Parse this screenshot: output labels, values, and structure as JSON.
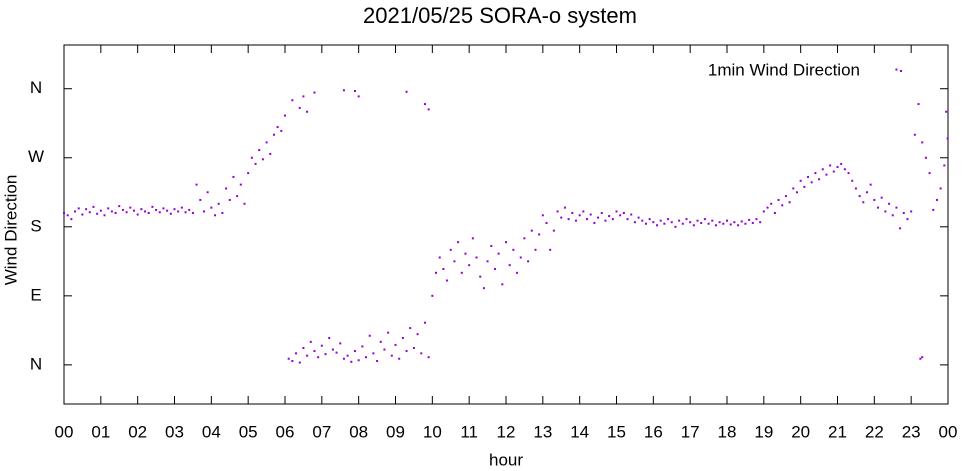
{
  "chart_data": {
    "type": "scatter",
    "title": "2021/05/25 SORA-o system",
    "x_label": "hour",
    "y_label": "Wind Direction",
    "xlim": [
      0,
      24
    ],
    "xticks": [
      {
        "value": 0,
        "label": "00"
      },
      {
        "value": 1,
        "label": "01"
      },
      {
        "value": 2,
        "label": "02"
      },
      {
        "value": 3,
        "label": "03"
      },
      {
        "value": 4,
        "label": "04"
      },
      {
        "value": 5,
        "label": "05"
      },
      {
        "value": 6,
        "label": "06"
      },
      {
        "value": 7,
        "label": "07"
      },
      {
        "value": 8,
        "label": "08"
      },
      {
        "value": 9,
        "label": "09"
      },
      {
        "value": 10,
        "label": "10"
      },
      {
        "value": 11,
        "label": "11"
      },
      {
        "value": 12,
        "label": "12"
      },
      {
        "value": 13,
        "label": "13"
      },
      {
        "value": 14,
        "label": "14"
      },
      {
        "value": 15,
        "label": "15"
      },
      {
        "value": 16,
        "label": "16"
      },
      {
        "value": 17,
        "label": "17"
      },
      {
        "value": 18,
        "label": "18"
      },
      {
        "value": 19,
        "label": "19"
      },
      {
        "value": 20,
        "label": "20"
      },
      {
        "value": 21,
        "label": "21"
      },
      {
        "value": 22,
        "label": "22"
      },
      {
        "value": 23,
        "label": "23"
      },
      {
        "value": 24,
        "label": "00"
      }
    ],
    "ylim": [
      -51,
      417
    ],
    "yticks": [
      {
        "value": 0,
        "label": "N"
      },
      {
        "value": 90,
        "label": "E"
      },
      {
        "value": 180,
        "label": "S"
      },
      {
        "value": 270,
        "label": "W"
      },
      {
        "value": 360,
        "label": "N"
      }
    ],
    "legend": "upper right",
    "series": [
      {
        "name": "1min Wind Direction",
        "color": "#9400d3",
        "x": [
          0,
          0.1,
          0.2,
          0.3,
          0.4,
          0.5,
          0.6,
          0.7,
          0.8,
          0.9,
          1,
          1.1,
          1.2,
          1.3,
          1.4,
          1.5,
          1.6,
          1.7,
          1.8,
          1.9,
          2,
          2.1,
          2.2,
          2.3,
          2.4,
          2.5,
          2.6,
          2.7,
          2.8,
          2.9,
          3,
          3.1,
          3.2,
          3.3,
          3.4,
          3.5,
          3.6,
          3.7,
          3.8,
          3.9,
          4,
          4.1,
          4.2,
          4.3,
          4.4,
          4.5,
          4.6,
          4.7,
          4.8,
          4.9,
          5,
          5.1,
          5.2,
          5.3,
          5.4,
          5.5,
          5.6,
          5.7,
          5.8,
          5.9,
          6,
          6.1,
          6.2,
          6.3,
          6.4,
          6.5,
          6.6,
          6.7,
          6.8,
          6.9,
          7,
          7.1,
          7.2,
          7.3,
          7.4,
          7.5,
          7.6,
          7.7,
          7.8,
          7.9,
          8,
          8.1,
          8.2,
          8.3,
          8.4,
          8.5,
          8.6,
          8.7,
          8.8,
          8.9,
          9,
          9.1,
          9.2,
          9.3,
          9.4,
          9.5,
          9.6,
          9.7,
          9.8,
          9.9,
          10,
          10.1,
          10.2,
          10.3,
          10.4,
          10.5,
          10.6,
          10.7,
          10.8,
          10.9,
          11,
          11.1,
          11.2,
          11.3,
          11.4,
          11.5,
          11.6,
          11.7,
          11.8,
          11.9,
          12,
          12.1,
          12.2,
          12.3,
          12.4,
          12.5,
          12.6,
          12.7,
          12.8,
          12.9,
          13,
          13.1,
          13.2,
          13.3,
          13.4,
          13.5,
          13.6,
          13.7,
          13.8,
          13.9,
          14,
          14.1,
          14.2,
          14.3,
          14.4,
          14.5,
          14.6,
          14.7,
          14.8,
          14.9,
          15,
          15.1,
          15.2,
          15.3,
          15.4,
          15.5,
          15.6,
          15.7,
          15.8,
          15.9,
          16,
          16.1,
          16.2,
          16.3,
          16.4,
          16.5,
          16.6,
          16.7,
          16.8,
          16.9,
          17,
          17.1,
          17.2,
          17.3,
          17.4,
          17.5,
          17.6,
          17.7,
          17.8,
          17.9,
          18,
          18.1,
          18.2,
          18.3,
          18.4,
          18.5,
          18.6,
          18.7,
          18.8,
          18.9,
          19,
          19.1,
          19.2,
          19.3,
          19.4,
          19.5,
          19.6,
          19.7,
          19.8,
          19.9,
          20,
          20.1,
          20.2,
          20.3,
          20.4,
          20.5,
          20.6,
          20.7,
          20.8,
          20.9,
          21,
          21.1,
          21.2,
          21.3,
          21.4,
          21.5,
          21.6,
          21.7,
          21.8,
          21.9,
          22,
          22.1,
          22.2,
          22.3,
          22.4,
          22.5,
          22.6,
          22.7,
          22.8,
          22.9,
          23,
          23.1,
          23.2,
          23.3,
          23.4,
          23.5,
          23.6,
          23.7,
          23.8,
          23.9,
          6.2,
          6.4,
          6.5,
          6.6,
          6.8,
          7.6,
          7.9,
          8,
          9.3,
          9.8,
          9.9,
          23.25,
          23.3,
          23.95,
          23.99,
          22.6
        ],
        "values": [
          198,
          195,
          190,
          200,
          204,
          196,
          203,
          199,
          206,
          197,
          201,
          195,
          204,
          200,
          198,
          207,
          202,
          199,
          205,
          201,
          196,
          203,
          200,
          198,
          206,
          202,
          199,
          204,
          201,
          197,
          203,
          200,
          205,
          199,
          202,
          198,
          235,
          215,
          200,
          225,
          205,
          195,
          210,
          198,
          230,
          215,
          245,
          220,
          235,
          210,
          250,
          270,
          262,
          280,
          268,
          290,
          275,
          300,
          310,
          305,
          325,
          8,
          5,
          15,
          3,
          22,
          12,
          30,
          18,
          10,
          25,
          14,
          35,
          20,
          16,
          28,
          8,
          12,
          4,
          18,
          6,
          24,
          10,
          38,
          15,
          5,
          30,
          20,
          42,
          12,
          26,
          8,
          35,
          18,
          48,
          22,
          40,
          15,
          55,
          10,
          90,
          120,
          140,
          125,
          110,
          150,
          135,
          160,
          120,
          145,
          130,
          165,
          140,
          115,
          100,
          135,
          155,
          125,
          145,
          105,
          160,
          130,
          150,
          120,
          140,
          165,
          135,
          175,
          150,
          170,
          195,
          185,
          150,
          175,
          200,
          192,
          205,
          190,
          198,
          188,
          195,
          200,
          190,
          196,
          185,
          192,
          198,
          188,
          194,
          190,
          200,
          195,
          198,
          190,
          196,
          186,
          192,
          188,
          184,
          190,
          186,
          182,
          188,
          184,
          190,
          186,
          180,
          188,
          184,
          190,
          186,
          182,
          188,
          185,
          190,
          184,
          188,
          182,
          186,
          184,
          188,
          183,
          186,
          182,
          187,
          184,
          189,
          185,
          190,
          186,
          200,
          205,
          210,
          198,
          215,
          208,
          220,
          212,
          230,
          225,
          240,
          232,
          245,
          238,
          250,
          242,
          255,
          248,
          260,
          252,
          258,
          262,
          255,
          250,
          240,
          230,
          220,
          212,
          225,
          235,
          215,
          205,
          218,
          200,
          210,
          195,
          205,
          178,
          198,
          190,
          200,
          300,
          340,
          290,
          270,
          250,
          202,
          215,
          230,
          260,
          345,
          335,
          350,
          330,
          355,
          358,
          357,
          350,
          356,
          340,
          333,
          8,
          10,
          330,
          295,
          385
        ]
      }
    ]
  }
}
